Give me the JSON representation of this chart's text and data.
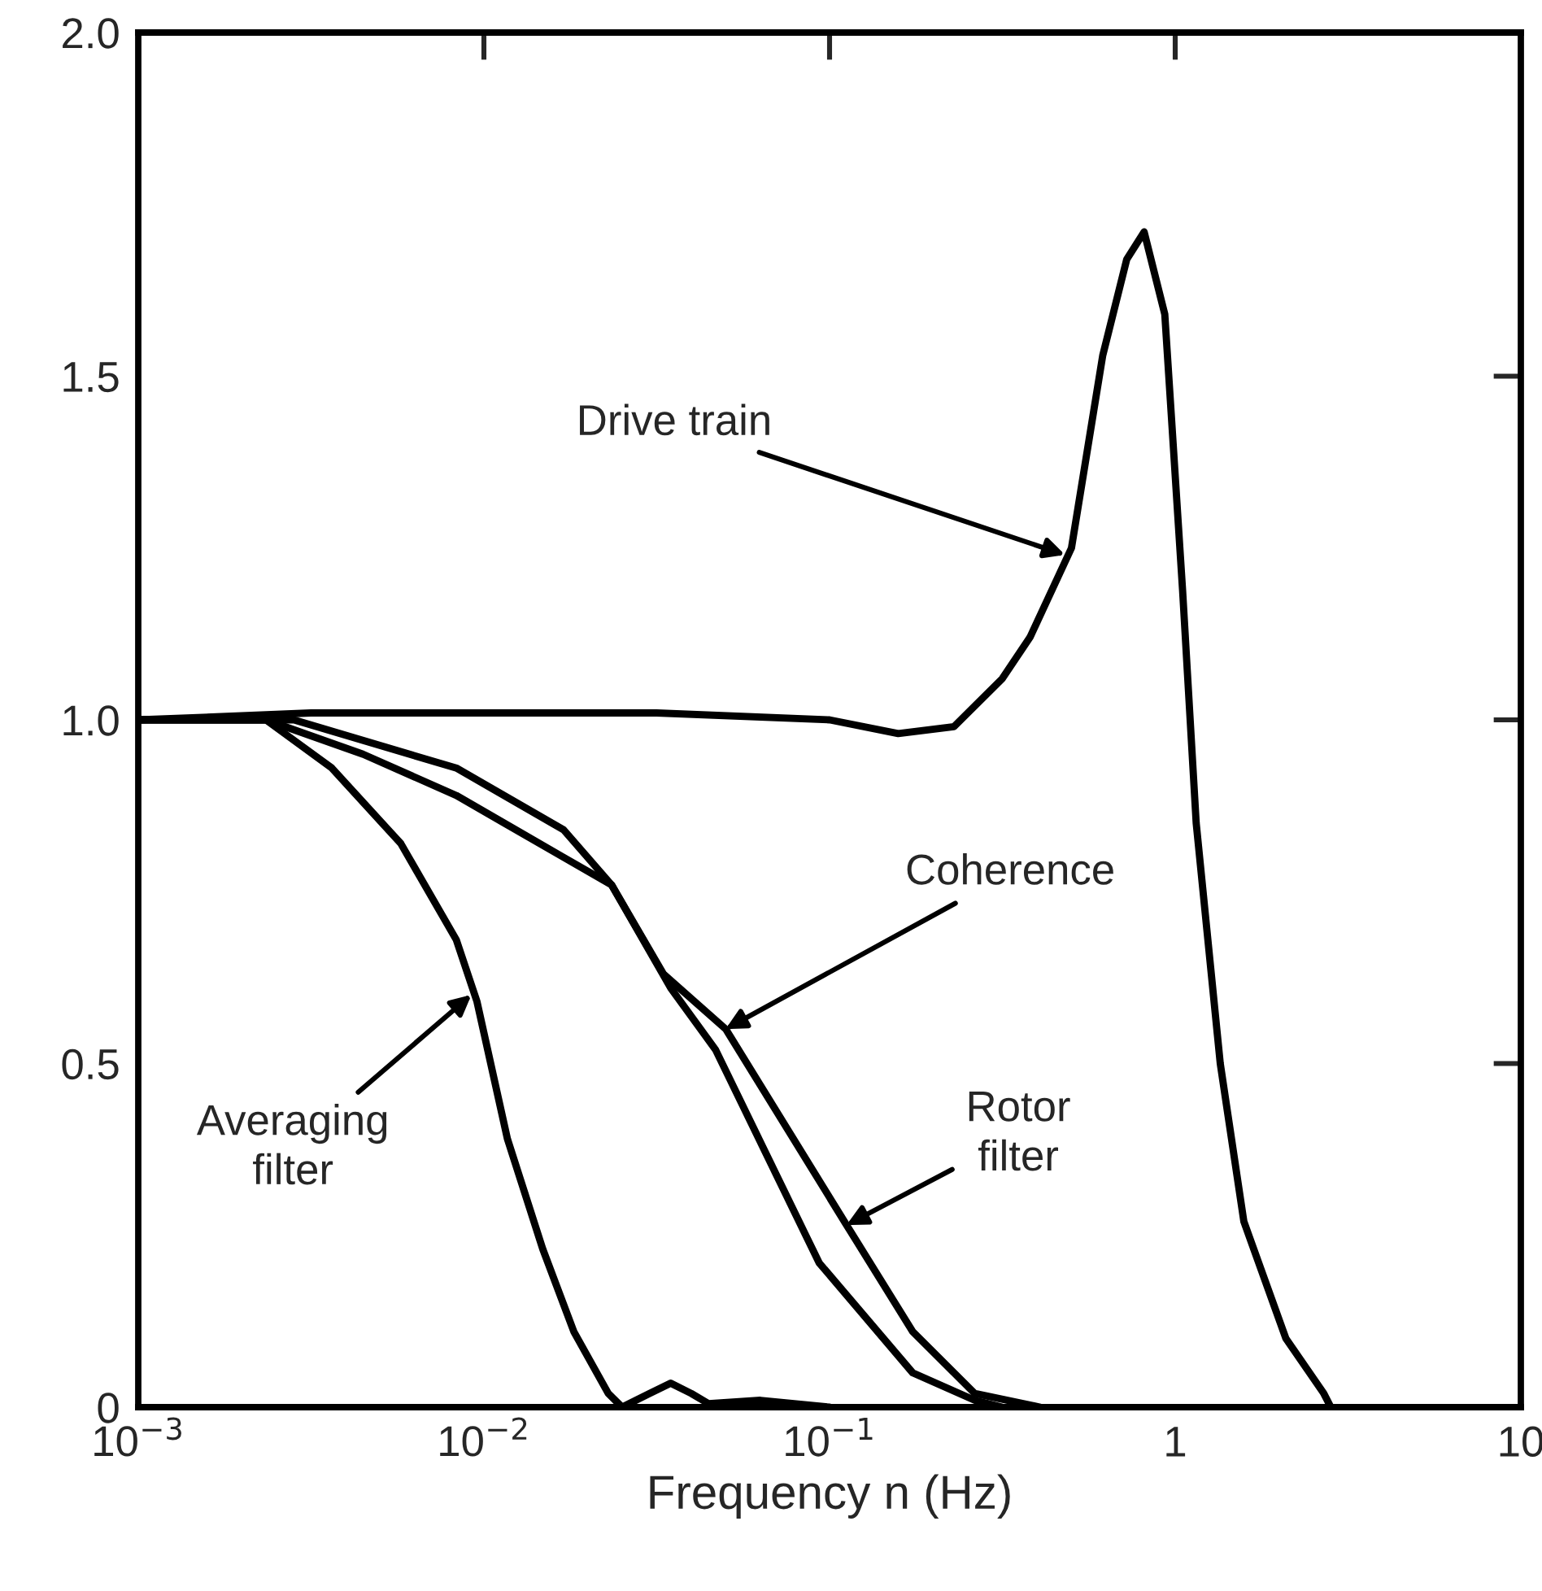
{
  "chart_data": {
    "type": "line",
    "xlabel": "Frequency n (Hz)",
    "log": "x",
    "xlim": [
      0.001,
      10
    ],
    "xticks": [
      {
        "value": 0.001,
        "label": "10$^{−3}$"
      },
      {
        "value": 0.01,
        "label": "10$^{−2}$"
      },
      {
        "value": 0.1,
        "label": "10$^{−1}$"
      },
      1,
      10
    ],
    "ylim": [
      0,
      2.0
    ],
    "yticks": [
      0,
      {
        "value": 0.5,
        "label": "0.5"
      },
      {
        "value": 1.0,
        "label": "1.0"
      },
      {
        "value": 1.5,
        "label": "1.5"
      },
      {
        "value": 2.0,
        "label": "2.0"
      }
    ],
    "grid": false,
    "legend": false,
    "marker": "none",
    "line_style": "solid",
    "series": [
      {
        "color": "#000000",
        "x": [
          0.001,
          0.00316,
          0.01,
          0.0316,
          0.1,
          0.158,
          0.229,
          0.316,
          0.38,
          0.501,
          0.617,
          0.724,
          0.813,
          0.933,
          1.05,
          1.15,
          1.35,
          1.58,
          2.09,
          2.69,
          2.82
        ],
        "values": [
          1.0,
          1.01,
          1.01,
          1.01,
          1.0,
          0.98,
          0.99,
          1.06,
          1.12,
          1.25,
          1.53,
          1.67,
          1.71,
          1.59,
          1.19,
          0.85,
          0.5,
          0.27,
          0.1,
          0.02,
          0
        ]
      },
      {
        "color": "#000000",
        "x": [
          0.001,
          0.00234,
          0.00363,
          0.00575,
          0.00832,
          0.00955,
          0.0117,
          0.0148,
          0.0182,
          0.0229,
          0.0251,
          0.0302,
          0.0347,
          0.0398,
          0.0447,
          0.0631,
          0.1
        ],
        "values": [
          1.0,
          1.0,
          0.93,
          0.82,
          0.68,
          0.59,
          0.39,
          0.23,
          0.11,
          0.02,
          0,
          0.02,
          0.035,
          0.02,
          0.005,
          0.01,
          0
        ]
      },
      {
        "color": "#000000",
        "x": [
          0.001,
          0.00282,
          0.00447,
          0.00832,
          0.017,
          0.0234,
          0.0347,
          0.0468,
          0.0933,
          0.174,
          0.263,
          0.316
        ],
        "values": [
          1.0,
          1.0,
          0.97,
          0.93,
          0.84,
          0.76,
          0.61,
          0.52,
          0.21,
          0.05,
          0.01,
          0
        ]
      },
      {
        "color": "#000000",
        "x": [
          0.001,
          0.00234,
          0.00447,
          0.00832,
          0.017,
          0.0234,
          0.0331,
          0.0501,
          0.112,
          0.174,
          0.263,
          0.407
        ],
        "values": [
          1.0,
          1.0,
          0.95,
          0.89,
          0.8,
          0.76,
          0.63,
          0.55,
          0.265,
          0.11,
          0.02,
          0
        ]
      }
    ],
    "annotations": [
      {
        "text": "Drive train",
        "x": 0.48,
        "y": 1.24
      },
      {
        "text": "Coherence",
        "x": 0.05,
        "y": 0.55
      },
      {
        "text": "Rotor\nfilter",
        "x": 0.112,
        "y": 0.265
      },
      {
        "text": "Averaging\nfilter",
        "x": 0.0092,
        "y": 0.6
      }
    ]
  }
}
